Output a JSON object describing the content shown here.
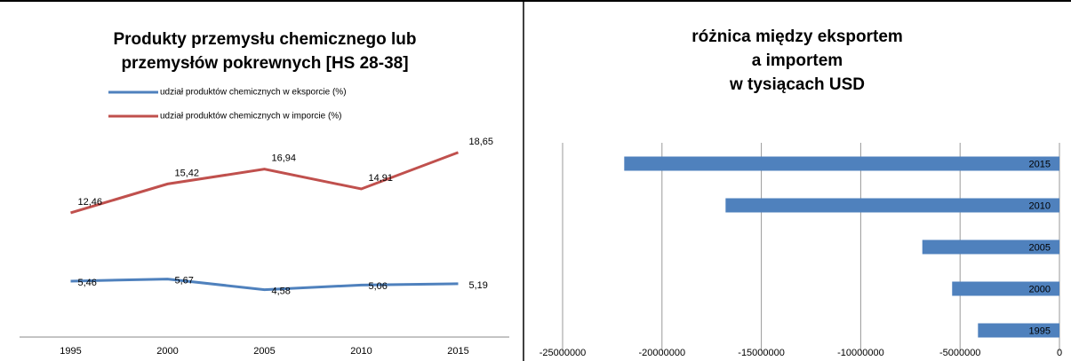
{
  "chart_data": [
    {
      "type": "line",
      "title": [
        "Produkty przemysłu chemicznego lub",
        "przemysłów pokrewnych [HS 28-38]"
      ],
      "categories": [
        "1995",
        "2000",
        "2005",
        "2010",
        "2015"
      ],
      "ylim": [
        0,
        20
      ],
      "series": [
        {
          "name": "udział produktów chemicznych w eksporcie (%)",
          "color": "#4f81bd",
          "values": [
            5.46,
            5.67,
            4.58,
            5.06,
            5.19
          ],
          "value_labels": [
            "5,46",
            "5,67",
            "4,58",
            "5,06",
            "5,19"
          ]
        },
        {
          "name": "udział produktów chemicznych w imporcie (%)",
          "color": "#c0504d",
          "values": [
            12.46,
            15.42,
            16.94,
            14.91,
            18.65
          ],
          "value_labels": [
            "12,46",
            "15,42",
            "16,94",
            "14,91",
            "18,65"
          ]
        }
      ]
    },
    {
      "type": "hbar",
      "title": [
        "różnica między eksportem",
        "a importem",
        "w tysiącach USD"
      ],
      "categories": [
        "1995",
        "2000",
        "2005",
        "2010",
        "2015"
      ],
      "values": [
        -4100000,
        -5400000,
        -6900000,
        -16800000,
        -21900000
      ],
      "color": "#4f81bd",
      "xlim": [
        -25000000,
        0
      ],
      "xticks": [
        -25000000,
        -20000000,
        -15000000,
        -10000000,
        -5000000,
        0
      ],
      "grid": true
    }
  ]
}
